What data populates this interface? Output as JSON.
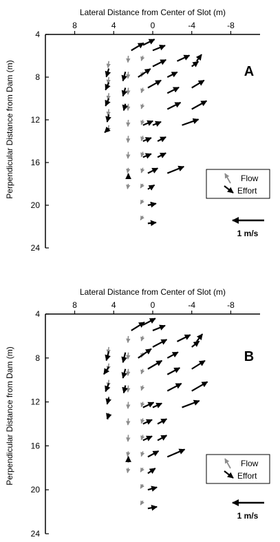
{
  "chart_data": [
    {
      "type": "quiver",
      "panel_label": "A",
      "xlabel": "Lateral Distance from Center of Slot (m)",
      "ylabel": "Perpendicular Distance from Dam (m)",
      "x_ticks": [
        "8",
        "4",
        "0",
        "-4",
        "-8"
      ],
      "y_ticks": [
        "4",
        "8",
        "12",
        "16",
        "20",
        "24"
      ],
      "xlim": [
        11,
        -11
      ],
      "ylim": [
        4,
        24
      ],
      "x_axis_position": "top",
      "x_reversed": true,
      "y_inverted": true,
      "legend": {
        "position": "right",
        "entries": [
          {
            "label": "Flow",
            "color": "#8c8c8c"
          },
          {
            "label": "Effort",
            "color": "#000000"
          }
        ]
      },
      "scale_label": "1 m/s",
      "flow_vectors": [
        [
          4.5,
          6.5,
          0.1,
          -0.8
        ],
        [
          4.5,
          8.0,
          0.1,
          -0.8
        ],
        [
          4.5,
          9.5,
          0.1,
          -0.8
        ],
        [
          4.5,
          11.0,
          0.1,
          -0.8
        ],
        [
          4.5,
          12.5,
          0.1,
          -0.8
        ],
        [
          2.5,
          6.0,
          0.05,
          -0.8
        ],
        [
          2.5,
          7.5,
          0.05,
          -0.8
        ],
        [
          2.5,
          9.0,
          0.05,
          -0.8
        ],
        [
          2.5,
          10.5,
          0.05,
          -0.8
        ],
        [
          2.5,
          12.0,
          0.05,
          -0.8
        ],
        [
          2.5,
          13.5,
          0.05,
          -0.8
        ],
        [
          2.5,
          15.0,
          0.05,
          -0.8
        ],
        [
          1.0,
          6.0,
          0.2,
          -0.6
        ],
        [
          1.0,
          7.5,
          0.2,
          -0.6
        ],
        [
          1.0,
          9.0,
          0.2,
          -0.6
        ],
        [
          1.0,
          10.5,
          0.2,
          -0.6
        ],
        [
          1.0,
          12.0,
          0.2,
          -0.6
        ],
        [
          1.0,
          13.5,
          0.2,
          -0.6
        ],
        [
          1.0,
          15.0,
          0.2,
          -0.6
        ],
        [
          1.0,
          16.5,
          0.2,
          -0.6
        ],
        [
          2.5,
          16.5,
          0.1,
          -0.6
        ],
        [
          2.5,
          18.0,
          0.1,
          -0.6
        ],
        [
          1.0,
          18.0,
          0.3,
          -0.5
        ],
        [
          1.0,
          19.5,
          0.3,
          -0.5
        ],
        [
          1.0,
          21.0,
          0.3,
          -0.5
        ]
      ],
      "effort_vectors": [
        [
          4.5,
          7.2,
          0.3,
          -1.0
        ],
        [
          4.5,
          8.5,
          0.4,
          -0.9
        ],
        [
          4.5,
          10.0,
          0.4,
          -0.9
        ],
        [
          4.5,
          11.5,
          0.2,
          -0.9
        ],
        [
          4.5,
          12.8,
          0.5,
          -0.5
        ],
        [
          2.8,
          7.5,
          0.3,
          -1.1
        ],
        [
          2.8,
          9.0,
          0.3,
          -1.0
        ],
        [
          2.8,
          10.5,
          0.2,
          -0.8
        ],
        [
          2.2,
          5.5,
          -1.5,
          0.9
        ],
        [
          1.0,
          5.0,
          -1.4,
          0.7
        ],
        [
          0.0,
          5.5,
          -1.5,
          0.6
        ],
        [
          0.0,
          7.0,
          -1.6,
          0.8
        ],
        [
          1.5,
          8.0,
          -1.5,
          1.0
        ],
        [
          0.5,
          9.0,
          -1.6,
          0.9
        ],
        [
          -1.5,
          8.0,
          -1.2,
          0.6
        ],
        [
          -1.5,
          9.5,
          -1.4,
          0.7
        ],
        [
          -1.5,
          11.0,
          -1.6,
          0.8
        ],
        [
          -4.0,
          7.0,
          -0.8,
          0.6
        ],
        [
          -4.0,
          9.0,
          -1.5,
          0.9
        ],
        [
          -4.0,
          11.0,
          -1.8,
          1.0
        ],
        [
          -3.0,
          12.5,
          -2.0,
          0.7
        ],
        [
          -2.5,
          6.5,
          -1.5,
          0.7
        ],
        [
          -4.5,
          6.5,
          -0.6,
          0.8
        ],
        [
          1.0,
          12.5,
          -1.2,
          0.5
        ],
        [
          0.0,
          12.5,
          -1.0,
          0.4
        ],
        [
          1.0,
          14.0,
          -1.0,
          0.4
        ],
        [
          -0.5,
          14.0,
          -1.0,
          0.5
        ],
        [
          1.0,
          15.5,
          -1.0,
          0.4
        ],
        [
          -0.5,
          15.5,
          -1.0,
          0.5
        ],
        [
          0.5,
          17.0,
          -1.2,
          0.6
        ],
        [
          -1.5,
          17.0,
          -2.0,
          0.8
        ],
        [
          2.5,
          17.5,
          0.0,
          0.6
        ],
        [
          0.5,
          18.5,
          -0.8,
          0.5
        ],
        [
          0.5,
          20.0,
          -1.0,
          0.2
        ],
        [
          0.5,
          21.7,
          -1.0,
          0.1
        ]
      ]
    },
    {
      "type": "quiver",
      "panel_label": "B",
      "xlabel": "Lateral Distance from Center of Slot (m)",
      "ylabel": "Perpendicular Distance from Dam (m)",
      "x_ticks": [
        "8",
        "4",
        "0",
        "-4",
        "-8"
      ],
      "y_ticks": [
        "4",
        "8",
        "12",
        "16",
        "20",
        "24"
      ],
      "xlim": [
        11,
        -11
      ],
      "ylim": [
        4,
        24
      ],
      "x_axis_position": "top",
      "x_reversed": true,
      "y_inverted": true,
      "legend": {
        "position": "right",
        "entries": [
          {
            "label": "Flow",
            "color": "#8c8c8c"
          },
          {
            "label": "Effort",
            "color": "#000000"
          }
        ]
      },
      "scale_label": "1 m/s",
      "flow_vectors": [
        [
          4.5,
          7.0,
          0.1,
          -0.8
        ],
        [
          4.5,
          8.5,
          0.1,
          -0.8
        ],
        [
          4.5,
          10.0,
          0.1,
          -0.8
        ],
        [
          4.5,
          11.5,
          0.1,
          -0.8
        ],
        [
          4.5,
          13.0,
          0.1,
          -0.8
        ],
        [
          2.5,
          6.0,
          0.05,
          -0.8
        ],
        [
          2.5,
          7.5,
          0.05,
          -0.8
        ],
        [
          2.5,
          9.0,
          0.05,
          -0.8
        ],
        [
          2.5,
          10.5,
          0.05,
          -0.8
        ],
        [
          2.5,
          12.0,
          0.05,
          -0.8
        ],
        [
          2.5,
          13.5,
          0.05,
          -0.8
        ],
        [
          2.5,
          15.0,
          0.05,
          -0.8
        ],
        [
          1.0,
          6.0,
          0.2,
          -0.6
        ],
        [
          1.0,
          7.5,
          0.2,
          -0.6
        ],
        [
          1.0,
          9.0,
          0.2,
          -0.6
        ],
        [
          1.0,
          10.5,
          0.2,
          -0.6
        ],
        [
          1.0,
          12.0,
          0.2,
          -0.6
        ],
        [
          1.0,
          13.5,
          0.2,
          -0.6
        ],
        [
          1.0,
          15.0,
          0.2,
          -0.6
        ],
        [
          1.0,
          16.5,
          0.2,
          -0.6
        ],
        [
          2.5,
          16.5,
          0.1,
          -0.6
        ],
        [
          2.5,
          18.0,
          0.1,
          -0.6
        ],
        [
          1.0,
          18.0,
          0.3,
          -0.5
        ],
        [
          1.0,
          19.5,
          0.3,
          -0.5
        ],
        [
          1.0,
          21.0,
          0.3,
          -0.5
        ]
      ],
      "effort_vectors": [
        [
          4.5,
          7.4,
          0.3,
          -1.1
        ],
        [
          4.5,
          8.8,
          0.6,
          -0.9
        ],
        [
          4.5,
          10.3,
          0.4,
          -1.0
        ],
        [
          4.5,
          11.6,
          0.2,
          -0.8
        ],
        [
          4.5,
          13.1,
          0.2,
          -0.6
        ],
        [
          2.8,
          7.5,
          0.3,
          -1.2
        ],
        [
          2.8,
          9.0,
          0.3,
          -1.1
        ],
        [
          2.8,
          10.5,
          0.2,
          -0.9
        ],
        [
          2.2,
          5.5,
          -1.6,
          1.0
        ],
        [
          1.0,
          5.0,
          -1.5,
          0.8
        ],
        [
          0.0,
          5.5,
          -1.5,
          0.6
        ],
        [
          0.0,
          7.0,
          -1.7,
          0.9
        ],
        [
          1.5,
          8.0,
          -1.6,
          1.1
        ],
        [
          0.5,
          9.0,
          -1.7,
          1.0
        ],
        [
          -1.5,
          8.0,
          -1.3,
          0.7
        ],
        [
          -1.5,
          9.5,
          -1.5,
          0.8
        ],
        [
          -1.5,
          11.0,
          -1.7,
          0.9
        ],
        [
          -4.0,
          7.0,
          -0.9,
          0.7
        ],
        [
          -4.0,
          9.0,
          -1.6,
          1.0
        ],
        [
          -4.0,
          11.0,
          -1.9,
          1.1
        ],
        [
          -3.0,
          12.5,
          -2.1,
          0.8
        ],
        [
          -2.5,
          6.5,
          -1.6,
          0.8
        ],
        [
          -4.5,
          6.5,
          -0.7,
          0.9
        ],
        [
          1.0,
          12.5,
          -1.3,
          0.6
        ],
        [
          0.0,
          12.5,
          -1.1,
          0.5
        ],
        [
          1.0,
          14.0,
          -1.1,
          0.5
        ],
        [
          -0.5,
          14.0,
          -1.1,
          0.6
        ],
        [
          1.0,
          15.5,
          -1.1,
          0.5
        ],
        [
          -0.5,
          15.5,
          -1.1,
          0.6
        ],
        [
          0.5,
          17.0,
          -1.3,
          0.7
        ],
        [
          -1.5,
          17.0,
          -2.1,
          0.9
        ],
        [
          2.5,
          17.5,
          0.0,
          0.7
        ],
        [
          0.5,
          18.5,
          -0.9,
          0.6
        ],
        [
          0.5,
          20.0,
          -1.1,
          0.3
        ],
        [
          0.5,
          21.7,
          -1.1,
          0.2
        ]
      ]
    }
  ]
}
